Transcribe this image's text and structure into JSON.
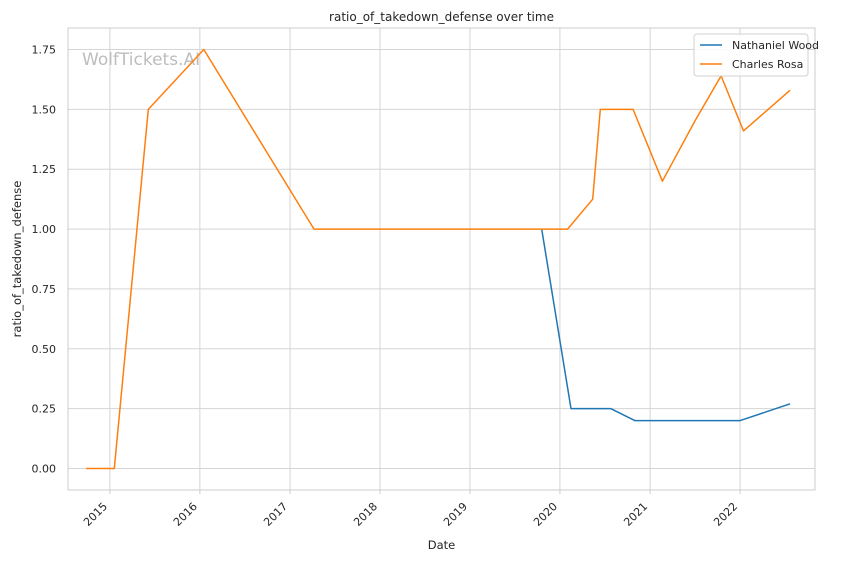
{
  "chart_data": {
    "type": "line",
    "title": "ratio_of_takedown_defense over time",
    "xlabel": "Date",
    "ylabel": "ratio_of_takedown_defense",
    "watermark": "WolfTickets.AI",
    "xlim": [
      "2014-07-15",
      "2022-11-01"
    ],
    "ylim": [
      -0.09,
      1.84
    ],
    "x_ticks": [
      {
        "label": "2015",
        "date": "2015-01-01"
      },
      {
        "label": "2016",
        "date": "2016-01-01"
      },
      {
        "label": "2017",
        "date": "2017-01-01"
      },
      {
        "label": "2018",
        "date": "2018-01-01"
      },
      {
        "label": "2019",
        "date": "2019-01-01"
      },
      {
        "label": "2020",
        "date": "2020-01-01"
      },
      {
        "label": "2021",
        "date": "2021-01-01"
      },
      {
        "label": "2022",
        "date": "2022-01-01"
      }
    ],
    "y_ticks": [
      {
        "label": "0.00",
        "value": 0.0
      },
      {
        "label": "0.25",
        "value": 0.25
      },
      {
        "label": "0.50",
        "value": 0.5
      },
      {
        "label": "0.75",
        "value": 0.75
      },
      {
        "label": "1.00",
        "value": 1.0
      },
      {
        "label": "1.25",
        "value": 1.25
      },
      {
        "label": "1.50",
        "value": 1.5
      },
      {
        "label": "1.75",
        "value": 1.75
      }
    ],
    "grid": true,
    "legend_position": "top-right",
    "series": [
      {
        "name": "Nathaniel Wood",
        "color": "#1f77b4",
        "points": [
          {
            "x": "2019-10-19",
            "y": 1.0
          },
          {
            "x": "2020-02-15",
            "y": 0.25
          },
          {
            "x": "2020-07-25",
            "y": 0.25
          },
          {
            "x": "2020-10-31",
            "y": 0.2
          },
          {
            "x": "2022-01-01",
            "y": 0.2
          },
          {
            "x": "2022-07-23",
            "y": 0.27
          }
        ]
      },
      {
        "name": "Charles Rosa",
        "color": "#ff7f0e",
        "points": [
          {
            "x": "2014-09-27",
            "y": 0.0
          },
          {
            "x": "2015-01-19",
            "y": 0.0
          },
          {
            "x": "2015-06-06",
            "y": 1.5
          },
          {
            "x": "2016-01-17",
            "y": 1.75
          },
          {
            "x": "2017-04-08",
            "y": 1.0
          },
          {
            "x": "2020-02-01",
            "y": 1.0
          },
          {
            "x": "2020-05-13",
            "y": 1.125
          },
          {
            "x": "2020-06-13",
            "y": 1.5
          },
          {
            "x": "2020-10-24",
            "y": 1.5
          },
          {
            "x": "2021-02-20",
            "y": 1.2
          },
          {
            "x": "2021-07-01",
            "y": 1.45
          },
          {
            "x": "2021-10-16",
            "y": 1.64
          },
          {
            "x": "2022-01-15",
            "y": 1.41
          },
          {
            "x": "2022-07-23",
            "y": 1.58
          }
        ]
      }
    ]
  }
}
